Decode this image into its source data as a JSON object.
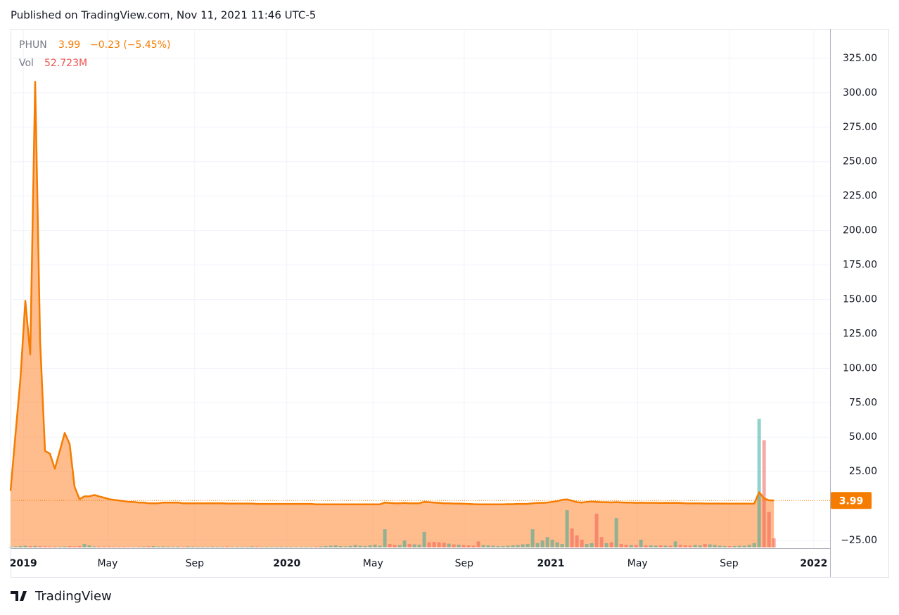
{
  "chart_data": {
    "type": "area",
    "publisher": "Published on TradingView.com, Nov 11, 2021 11:46 UTC-5",
    "last_label": "3.99",
    "change_label": "−0.23 (−5.45%)",
    "volume_label": "52.723M",
    "logo": "TradingView",
    "ylim": [
      -30.1,
      346.4
    ],
    "yticks": [
      {
        "value": -25,
        "label": "−25.00"
      },
      {
        "value": 25,
        "label": "25.00"
      },
      {
        "value": 50,
        "label": "50.00"
      },
      {
        "value": 75,
        "label": "75.00"
      },
      {
        "value": 100,
        "label": "100.00"
      },
      {
        "value": 125,
        "label": "125.00"
      },
      {
        "value": 150,
        "label": "150.00"
      },
      {
        "value": 175,
        "label": "175.00"
      },
      {
        "value": 200,
        "label": "200.00"
      },
      {
        "value": 225,
        "label": "225.00"
      },
      {
        "value": 250,
        "label": "250.00"
      },
      {
        "value": 275,
        "label": "275.00"
      },
      {
        "value": 300,
        "label": "300.00"
      },
      {
        "value": 325,
        "label": "325.00"
      }
    ],
    "xlim": [
      0,
      166.4
    ],
    "xticks": [
      {
        "value": 2.6,
        "label": "2019"
      },
      {
        "value": 19.7,
        "label": "May"
      },
      {
        "value": 37.4,
        "label": "Sep"
      },
      {
        "value": 56.1,
        "label": "2020"
      },
      {
        "value": 73.6,
        "label": "May"
      },
      {
        "value": 92.1,
        "label": "Sep"
      },
      {
        "value": 109.7,
        "label": "2021"
      },
      {
        "value": 127.3,
        "label": "May"
      },
      {
        "value": 145.9,
        "label": "Sep"
      },
      {
        "value": 163.1,
        "label": "2022"
      }
    ],
    "grid": true,
    "series": [
      {
        "name": "PHUN",
        "color": "#f57c00",
        "values": [
          11,
          52,
          92,
          149,
          110,
          308,
          120,
          40,
          38,
          27,
          40,
          53,
          45,
          14,
          5,
          7,
          7,
          8,
          7,
          6,
          5,
          4.5,
          4,
          3.5,
          3,
          3,
          2.5,
          2.5,
          2,
          2,
          2,
          2.5,
          2.5,
          2.5,
          2.5,
          2,
          2,
          2,
          2,
          2,
          2,
          2,
          2,
          2,
          1.8,
          1.8,
          1.8,
          1.8,
          1.8,
          1.8,
          1.5,
          1.5,
          1.5,
          1.5,
          1.5,
          1.5,
          1.5,
          1.5,
          1.5,
          1.5,
          1.5,
          1.5,
          1.2,
          1.2,
          1.2,
          1.2,
          1.2,
          1.2,
          1.2,
          1.2,
          1.2,
          1.2,
          1.2,
          1.2,
          1.2,
          1.2,
          2.5,
          2.2,
          2,
          2,
          2.2,
          2,
          2,
          2,
          3,
          2.8,
          2.5,
          2.3,
          2,
          2,
          1.8,
          1.8,
          1.6,
          1.5,
          1.3,
          1.2,
          1.2,
          1.2,
          1.2,
          1.2,
          1.2,
          1.3,
          1.3,
          1.5,
          1.5,
          1.5,
          2,
          2.2,
          2.3,
          2.5,
          3,
          3.5,
          4.5,
          4.8,
          3.8,
          2.8,
          2.5,
          3,
          3.2,
          3,
          2.8,
          2.8,
          2.6,
          2.8,
          2.6,
          2.5,
          2.5,
          2.3,
          2.4,
          2.3,
          2.3,
          2.3,
          2.2,
          2.3,
          2.2,
          2.3,
          2.2,
          2,
          1.9,
          1.9,
          1.9,
          1.8,
          1.8,
          1.8,
          1.8,
          1.8,
          1.7,
          1.7,
          1.7,
          1.7,
          1.7,
          1.8,
          10,
          5.5,
          4.2,
          3.99
        ]
      },
      {
        "name": "Vol",
        "axis": "volume",
        "up_color": "rgba(38,166,154,0.5)",
        "down_color": "rgba(239,83,80,0.5)",
        "values": [
          4,
          6,
          8,
          10,
          8,
          9,
          7,
          6,
          5,
          5,
          5,
          6,
          8,
          6,
          8,
          20,
          12,
          6,
          5,
          5,
          5,
          4,
          4,
          4,
          3,
          3,
          4,
          5,
          6,
          8,
          5,
          6,
          5,
          4,
          5,
          4,
          6,
          5,
          4,
          4,
          4,
          5,
          4,
          4,
          5,
          4,
          4,
          4,
          4,
          6,
          5,
          4,
          4,
          4,
          4,
          4,
          4,
          4,
          4,
          4,
          4,
          4,
          5,
          6,
          8,
          10,
          12,
          8,
          6,
          9,
          14,
          10,
          8,
          12,
          16,
          10,
          105,
          20,
          15,
          14,
          40,
          20,
          18,
          16,
          90,
          30,
          32,
          30,
          28,
          22,
          18,
          16,
          14,
          12,
          10,
          35,
          14,
          12,
          10,
          8,
          8,
          10,
          12,
          14,
          18,
          20,
          105,
          25,
          40,
          60,
          45,
          30,
          20,
          215,
          110,
          70,
          45,
          20,
          25,
          195,
          60,
          25,
          30,
          170,
          20,
          15,
          14,
          14,
          45,
          12,
          12,
          10,
          12,
          10,
          10,
          35,
          15,
          12,
          10,
          14,
          12,
          20,
          18,
          14,
          10,
          8,
          8,
          8,
          10,
          10,
          15,
          25,
          743,
          620,
          205,
          52.723
        ]
      }
    ]
  }
}
